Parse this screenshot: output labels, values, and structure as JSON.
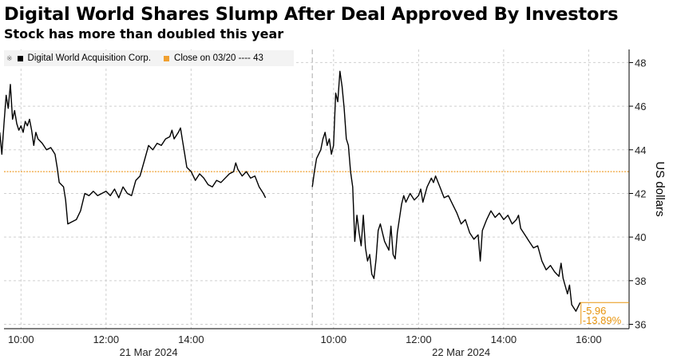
{
  "header": {
    "title": "Digital World Shares Slump After Deal Approved By Investors",
    "subtitle": "Stock has more than doubled this year"
  },
  "legend": {
    "series_label": "Digital World Acquisition Corp.",
    "reference_label": "Close on 03/20 ---- 43"
  },
  "colors": {
    "series": "#000000",
    "reference": "#f0a030",
    "annotation": "#e8950f",
    "grid": "#cfcfcf"
  },
  "chart_data": {
    "type": "line",
    "ylabel": "US dollars",
    "ylim": [
      35.8,
      48.6
    ],
    "yticks": [
      36,
      38,
      40,
      42,
      44,
      46,
      48
    ],
    "ytick_labels": [
      "36",
      "38",
      "40",
      "42",
      "44",
      "46",
      "48"
    ],
    "x_domain": [
      9.6,
      16.95
    ],
    "x_ticks": [
      {
        "session": 0,
        "hour": 10,
        "label": "10:00"
      },
      {
        "session": 0,
        "hour": 12,
        "label": "12:00"
      },
      {
        "session": 0,
        "hour": 14,
        "label": "14:00"
      },
      {
        "session": 1,
        "hour": 10,
        "label": "10:00"
      },
      {
        "session": 1,
        "hour": 12,
        "label": "12:00"
      },
      {
        "session": 1,
        "hour": 14,
        "label": "14:00"
      },
      {
        "session": 1,
        "hour": 16,
        "label": "16:00"
      }
    ],
    "date_labels": [
      {
        "session": 0,
        "hour": 13,
        "label": "21 Mar 2024"
      },
      {
        "session": 1,
        "hour": 13,
        "label": "22 Mar 2024"
      }
    ],
    "session_break": {
      "session": 1,
      "hour": 9.5
    },
    "reference_value": 43,
    "change_labels": [
      "-5.96",
      "-13.89%"
    ],
    "series": [
      {
        "name": "Digital World Acquisition Corp.",
        "sessions": [
          [
            [
              9.5,
              44.8
            ],
            [
              9.55,
              43.8
            ],
            [
              9.6,
              45.2
            ],
            [
              9.65,
              46.5
            ],
            [
              9.7,
              45.9
            ],
            [
              9.75,
              47.0
            ],
            [
              9.8,
              45.4
            ],
            [
              9.85,
              45.8
            ],
            [
              9.9,
              45.2
            ],
            [
              9.95,
              44.9
            ],
            [
              10.0,
              45.1
            ],
            [
              10.05,
              44.8
            ],
            [
              10.1,
              45.3
            ],
            [
              10.15,
              45.1
            ],
            [
              10.2,
              45.4
            ],
            [
              10.25,
              44.9
            ],
            [
              10.3,
              44.2
            ],
            [
              10.35,
              44.8
            ],
            [
              10.4,
              44.5
            ],
            [
              10.5,
              44.3
            ],
            [
              10.6,
              44.0
            ],
            [
              10.7,
              44.1
            ],
            [
              10.8,
              43.8
            ],
            [
              10.85,
              43.2
            ],
            [
              10.9,
              42.5
            ],
            [
              11.0,
              42.3
            ],
            [
              11.05,
              41.7
            ],
            [
              11.1,
              40.6
            ],
            [
              11.2,
              40.7
            ],
            [
              11.3,
              40.8
            ],
            [
              11.4,
              41.2
            ],
            [
              11.5,
              42.0
            ],
            [
              11.6,
              41.9
            ],
            [
              11.7,
              42.1
            ],
            [
              11.8,
              41.9
            ],
            [
              11.9,
              42.0
            ],
            [
              12.0,
              42.1
            ],
            [
              12.1,
              41.9
            ],
            [
              12.2,
              42.2
            ],
            [
              12.3,
              41.8
            ],
            [
              12.4,
              42.3
            ],
            [
              12.5,
              42.0
            ],
            [
              12.6,
              41.9
            ],
            [
              12.7,
              42.6
            ],
            [
              12.8,
              42.8
            ],
            [
              12.9,
              43.5
            ],
            [
              13.0,
              44.2
            ],
            [
              13.1,
              44.0
            ],
            [
              13.2,
              44.3
            ],
            [
              13.3,
              44.2
            ],
            [
              13.4,
              44.5
            ],
            [
              13.5,
              44.6
            ],
            [
              13.55,
              44.9
            ],
            [
              13.6,
              44.5
            ],
            [
              13.7,
              44.8
            ],
            [
              13.75,
              45.0
            ],
            [
              13.8,
              44.4
            ],
            [
              13.85,
              43.8
            ],
            [
              13.9,
              43.2
            ],
            [
              14.0,
              43.0
            ],
            [
              14.1,
              42.6
            ],
            [
              14.2,
              42.9
            ],
            [
              14.3,
              42.7
            ],
            [
              14.4,
              42.4
            ],
            [
              14.5,
              42.3
            ],
            [
              14.6,
              42.6
            ],
            [
              14.7,
              42.5
            ],
            [
              14.8,
              42.7
            ],
            [
              14.9,
              42.9
            ],
            [
              15.0,
              43.0
            ],
            [
              15.05,
              43.4
            ],
            [
              15.1,
              43.1
            ],
            [
              15.2,
              42.8
            ],
            [
              15.3,
              43.0
            ],
            [
              15.4,
              42.7
            ],
            [
              15.5,
              42.8
            ],
            [
              15.6,
              42.3
            ],
            [
              15.7,
              42.0
            ],
            [
              15.75,
              41.8
            ]
          ],
          [
            [
              9.5,
              42.3
            ],
            [
              9.55,
              43.0
            ],
            [
              9.6,
              43.6
            ],
            [
              9.7,
              44.0
            ],
            [
              9.75,
              44.5
            ],
            [
              9.8,
              44.8
            ],
            [
              9.85,
              44.2
            ],
            [
              9.9,
              44.5
            ],
            [
              9.95,
              43.8
            ],
            [
              10.0,
              44.2
            ],
            [
              10.05,
              46.6
            ],
            [
              10.1,
              46.2
            ],
            [
              10.15,
              47.6
            ],
            [
              10.2,
              46.9
            ],
            [
              10.25,
              45.9
            ],
            [
              10.3,
              44.5
            ],
            [
              10.35,
              44.2
            ],
            [
              10.4,
              43.0
            ],
            [
              10.45,
              42.3
            ],
            [
              10.5,
              39.8
            ],
            [
              10.55,
              41.0
            ],
            [
              10.6,
              40.2
            ],
            [
              10.65,
              39.6
            ],
            [
              10.7,
              41.0
            ],
            [
              10.75,
              39.5
            ],
            [
              10.8,
              38.9
            ],
            [
              10.85,
              39.2
            ],
            [
              10.9,
              38.3
            ],
            [
              10.95,
              38.1
            ],
            [
              11.0,
              39.0
            ],
            [
              11.05,
              40.3
            ],
            [
              11.1,
              40.6
            ],
            [
              11.2,
              39.8
            ],
            [
              11.3,
              39.4
            ],
            [
              11.35,
              40.5
            ],
            [
              11.4,
              39.2
            ],
            [
              11.45,
              39.0
            ],
            [
              11.5,
              40.2
            ],
            [
              11.6,
              41.5
            ],
            [
              11.65,
              41.9
            ],
            [
              11.7,
              41.6
            ],
            [
              11.8,
              42.0
            ],
            [
              11.9,
              41.7
            ],
            [
              12.0,
              41.9
            ],
            [
              12.05,
              42.2
            ],
            [
              12.1,
              41.6
            ],
            [
              12.2,
              42.3
            ],
            [
              12.3,
              42.7
            ],
            [
              12.35,
              42.5
            ],
            [
              12.4,
              42.8
            ],
            [
              12.5,
              42.3
            ],
            [
              12.6,
              41.8
            ],
            [
              12.7,
              41.9
            ],
            [
              12.8,
              41.5
            ],
            [
              12.9,
              41.1
            ],
            [
              13.0,
              40.6
            ],
            [
              13.1,
              40.8
            ],
            [
              13.2,
              40.2
            ],
            [
              13.3,
              39.9
            ],
            [
              13.4,
              40.1
            ],
            [
              13.45,
              38.9
            ],
            [
              13.5,
              40.3
            ],
            [
              13.6,
              40.8
            ],
            [
              13.7,
              41.2
            ],
            [
              13.8,
              40.9
            ],
            [
              13.9,
              41.1
            ],
            [
              14.0,
              40.8
            ],
            [
              14.1,
              41.0
            ],
            [
              14.2,
              40.6
            ],
            [
              14.3,
              40.8
            ],
            [
              14.35,
              41.0
            ],
            [
              14.4,
              40.4
            ],
            [
              14.5,
              40.1
            ],
            [
              14.6,
              39.8
            ],
            [
              14.7,
              39.5
            ],
            [
              14.8,
              39.6
            ],
            [
              14.9,
              38.9
            ],
            [
              15.0,
              38.5
            ],
            [
              15.1,
              38.7
            ],
            [
              15.2,
              38.4
            ],
            [
              15.3,
              38.2
            ],
            [
              15.35,
              38.8
            ],
            [
              15.4,
              38.1
            ],
            [
              15.5,
              37.4
            ],
            [
              15.55,
              37.8
            ],
            [
              15.6,
              36.9
            ],
            [
              15.7,
              36.6
            ],
            [
              15.8,
              37.0
            ]
          ]
        ]
      }
    ]
  }
}
